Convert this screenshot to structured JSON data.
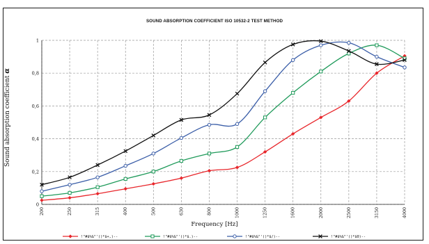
{
  "chart_data": {
    "type": "line",
    "title": "SOUND ABSORPTION COEFFICIENT ISO 10532-2 TEST METHOD",
    "xlabel": "Frequency [Hz]",
    "ylabel": "Sound absorption coefficient",
    "ylabel_symbol": "α",
    "categories": [
      "200",
      "250",
      "315",
      "400",
      "500",
      "630",
      "800",
      "1000",
      "1250",
      "1600",
      "2000",
      "2500",
      "3150",
      "4000"
    ],
    "yticks": [
      "0",
      "0,2",
      "0,4",
      "0,6",
      "0,8",
      "1"
    ],
    "ylim": [
      0,
      1
    ],
    "grid": true,
    "legend_position": "bottom",
    "series": [
      {
        "name": "!\"#$%&\"'()*$+,)--",
        "color": "#e8262b",
        "marker": "diamond",
        "values": [
          0.025,
          0.04,
          0.065,
          0.095,
          0.125,
          0.16,
          0.205,
          0.225,
          0.32,
          0.43,
          0.53,
          0.63,
          0.8,
          0.905
        ]
      },
      {
        "name": "!\"#$%&\"'()*$.)--",
        "color": "#1f9a5a",
        "marker": "square",
        "values": [
          0.05,
          0.07,
          0.105,
          0.155,
          0.2,
          0.265,
          0.31,
          0.35,
          0.53,
          0.68,
          0.81,
          0.92,
          0.97,
          0.89
        ]
      },
      {
        "name": "!\"#$%&\"'()*$/)--",
        "color": "#3b5ea8",
        "marker": "circle",
        "values": [
          0.08,
          0.12,
          0.165,
          0.235,
          0.31,
          0.405,
          0.485,
          0.49,
          0.69,
          0.88,
          0.97,
          0.985,
          0.9,
          0.835
        ]
      },
      {
        "name": "!\"#$%&\"'()*$0)--",
        "color": "#111111",
        "marker": "x",
        "values": [
          0.12,
          0.165,
          0.24,
          0.325,
          0.42,
          0.515,
          0.545,
          0.675,
          0.865,
          0.975,
          0.995,
          0.935,
          0.855,
          0.88
        ]
      }
    ]
  }
}
